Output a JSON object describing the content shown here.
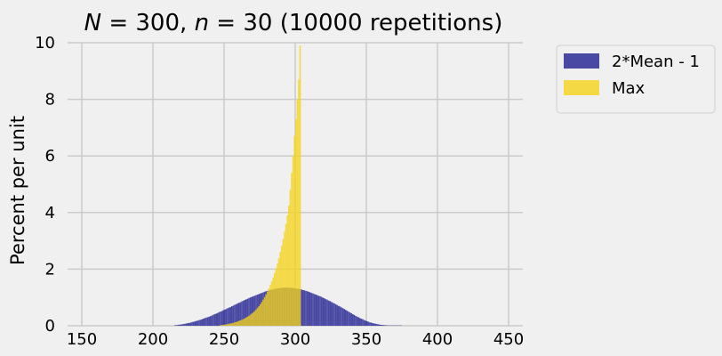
{
  "chart_data": {
    "type": "histogram",
    "title": "N = 300, n = 30 (10000 repetitions)",
    "title_parts": {
      "N_symbol": "N",
      "N_value": " = 300, ",
      "n_symbol": "n",
      "n_value": " = 30 (10000 repetitions)"
    },
    "xlabel": "",
    "ylabel": "Percent per unit",
    "xlim": [
      140,
      460
    ],
    "ylim": [
      0,
      10
    ],
    "x_ticks": [
      150,
      200,
      250,
      300,
      350,
      400,
      450
    ],
    "x_tick_labels": [
      "150",
      "200",
      "250",
      "300",
      "350",
      "400",
      "450"
    ],
    "y_ticks": [
      0,
      2,
      4,
      6,
      8,
      10
    ],
    "y_tick_labels": [
      "0",
      "2",
      "4",
      "6",
      "8",
      "10"
    ],
    "grid": true,
    "legend_placement": "outside-top-right",
    "bin_width": 1,
    "series": [
      {
        "name": "2*Mean - 1",
        "color": "#2b2b96",
        "bin_start": 215,
        "values": [
          0.02,
          0.02,
          0.03,
          0.04,
          0.04,
          0.05,
          0.06,
          0.07,
          0.08,
          0.09,
          0.1,
          0.11,
          0.13,
          0.14,
          0.15,
          0.17,
          0.18,
          0.2,
          0.21,
          0.23,
          0.25,
          0.27,
          0.29,
          0.3,
          0.32,
          0.34,
          0.36,
          0.39,
          0.41,
          0.43,
          0.45,
          0.48,
          0.5,
          0.52,
          0.55,
          0.57,
          0.59,
          0.62,
          0.64,
          0.66,
          0.69,
          0.71,
          0.74,
          0.76,
          0.79,
          0.81,
          0.83,
          0.86,
          0.88,
          0.91,
          0.93,
          0.95,
          0.98,
          1.0,
          1.02,
          1.04,
          1.06,
          1.08,
          1.1,
          1.12,
          1.14,
          1.16,
          1.18,
          1.2,
          1.22,
          1.23,
          1.25,
          1.26,
          1.28,
          1.29,
          1.3,
          1.31,
          1.32,
          1.33,
          1.33,
          1.34,
          1.34,
          1.35,
          1.35,
          1.35,
          1.35,
          1.34,
          1.34,
          1.33,
          1.33,
          1.32,
          1.31,
          1.3,
          1.29,
          1.28,
          1.26,
          1.25,
          1.23,
          1.22,
          1.2,
          1.18,
          1.16,
          1.14,
          1.12,
          1.1,
          1.08,
          1.06,
          1.04,
          1.02,
          0.99,
          0.97,
          0.94,
          0.92,
          0.89,
          0.87,
          0.84,
          0.81,
          0.79,
          0.76,
          0.73,
          0.7,
          0.68,
          0.65,
          0.62,
          0.59,
          0.56,
          0.53,
          0.5,
          0.47,
          0.44,
          0.41,
          0.38,
          0.35,
          0.32,
          0.3,
          0.27,
          0.25,
          0.23,
          0.2,
          0.18,
          0.16,
          0.14,
          0.12,
          0.11,
          0.09,
          0.08,
          0.07,
          0.06,
          0.05,
          0.04,
          0.03,
          0.03,
          0.02,
          0.02,
          0.01,
          0.01,
          0.01,
          0.01,
          0.01,
          0.01,
          0.01,
          0.01,
          0.01,
          0.01,
          0.01
        ]
      },
      {
        "name": "Max",
        "color": "#f5d31a",
        "bin_start": 247,
        "values": [
          0.02,
          0.03,
          0.03,
          0.04,
          0.05,
          0.06,
          0.07,
          0.08,
          0.09,
          0.1,
          0.12,
          0.13,
          0.15,
          0.17,
          0.19,
          0.21,
          0.23,
          0.26,
          0.29,
          0.32,
          0.35,
          0.39,
          0.43,
          0.47,
          0.52,
          0.57,
          0.63,
          0.69,
          0.76,
          0.84,
          0.92,
          1.01,
          1.11,
          1.21,
          1.32,
          1.44,
          1.57,
          1.71,
          1.86,
          2.03,
          2.2,
          2.39,
          2.6,
          2.82,
          3.06,
          3.32,
          3.6,
          3.9,
          4.25,
          4.8,
          5.4,
          6.0,
          6.7,
          7.3,
          8.0,
          8.7,
          9.9
        ]
      }
    ]
  }
}
